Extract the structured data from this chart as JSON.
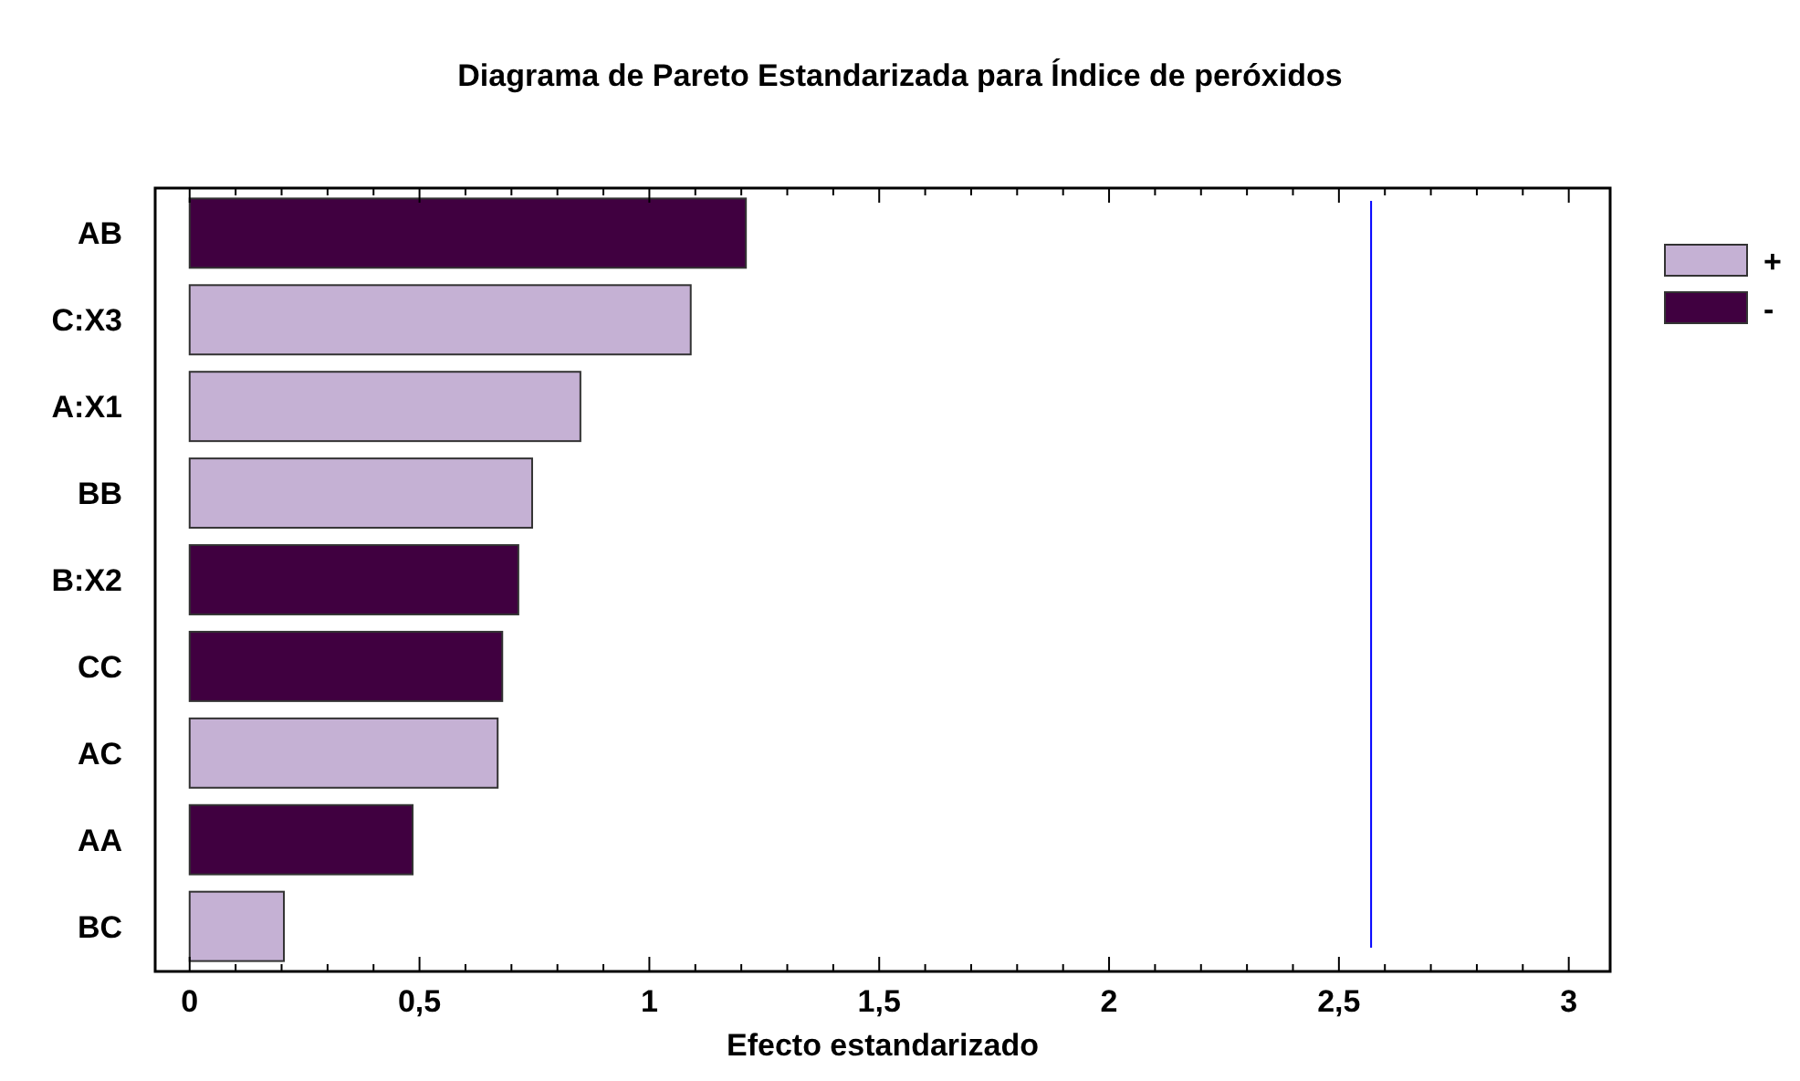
{
  "chart_data": {
    "type": "bar",
    "orientation": "horizontal",
    "title": "Diagrama de Pareto Estandarizada para Índice de peróxidos",
    "xlabel": "Efecto estandarizado",
    "categories": [
      "AB",
      "C:X3",
      "A:X1",
      "BB",
      "B:X2",
      "CC",
      "AC",
      "AA",
      "BC"
    ],
    "series": [
      {
        "name": "+",
        "color": "#c5b1d4",
        "values": [
          null,
          1.09,
          0.85,
          0.745,
          null,
          null,
          0.67,
          null,
          0.205
        ]
      },
      {
        "name": "-",
        "color": "#400040",
        "values": [
          1.21,
          null,
          null,
          null,
          0.715,
          0.68,
          null,
          0.485,
          null
        ]
      }
    ],
    "xlim": [
      -0.075,
      3.09
    ],
    "xticks": [
      {
        "value": 0,
        "label": "0"
      },
      {
        "value": 0.1,
        "label": null
      },
      {
        "value": 0.2,
        "label": null
      },
      {
        "value": 0.3,
        "label": null
      },
      {
        "value": 0.4,
        "label": null
      },
      {
        "value": 0.5,
        "label": "0,5"
      },
      {
        "value": 0.6,
        "label": null
      },
      {
        "value": 0.7,
        "label": null
      },
      {
        "value": 0.8,
        "label": null
      },
      {
        "value": 0.9,
        "label": null
      },
      {
        "value": 1,
        "label": "1"
      },
      {
        "value": 1.1,
        "label": null
      },
      {
        "value": 1.2,
        "label": null
      },
      {
        "value": 1.3,
        "label": null
      },
      {
        "value": 1.4,
        "label": null
      },
      {
        "value": 1.5,
        "label": "1,5"
      },
      {
        "value": 1.6,
        "label": null
      },
      {
        "value": 1.7,
        "label": null
      },
      {
        "value": 1.8,
        "label": null
      },
      {
        "value": 1.9,
        "label": null
      },
      {
        "value": 2,
        "label": "2"
      },
      {
        "value": 2.1,
        "label": null
      },
      {
        "value": 2.2,
        "label": null
      },
      {
        "value": 2.3,
        "label": null
      },
      {
        "value": 2.4,
        "label": null
      },
      {
        "value": 2.5,
        "label": "2,5"
      },
      {
        "value": 2.6,
        "label": null
      },
      {
        "value": 2.7,
        "label": null
      },
      {
        "value": 2.8,
        "label": null
      },
      {
        "value": 2.9,
        "label": null
      },
      {
        "value": 3,
        "label": "3"
      }
    ],
    "ref_lines": [
      {
        "axis": "x",
        "value": 2.57,
        "color": "#0000ff"
      }
    ],
    "legend": "top right",
    "grid": false
  }
}
